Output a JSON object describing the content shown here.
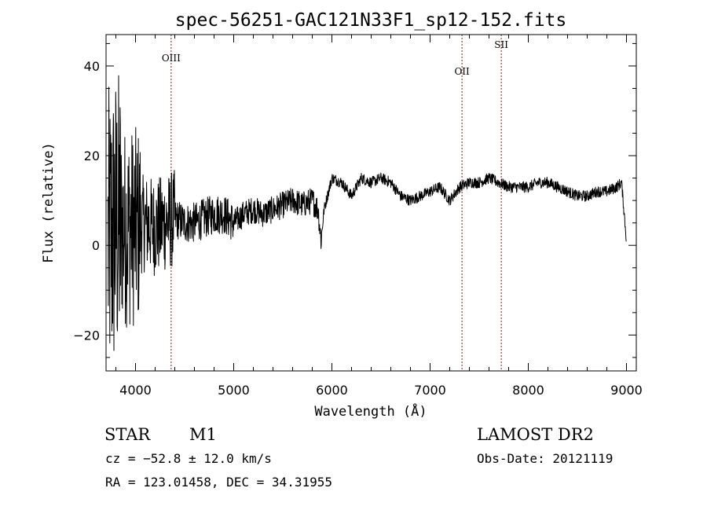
{
  "chart_data": {
    "type": "line",
    "title": "spec-56251-GAC121N33F1_sp12-152.fits",
    "xlabel": "Wavelength (Å)",
    "ylabel": "Flux (relative)",
    "xlim": [
      3700,
      9100
    ],
    "ylim": [
      -28,
      47
    ],
    "xticks": [
      4000,
      5000,
      6000,
      7000,
      8000,
      9000
    ],
    "yticks": [
      -20,
      0,
      20,
      40
    ],
    "grid": false,
    "legend": "none",
    "line_color": "#000000",
    "marker_color": "#8b1a1a",
    "series": [
      {
        "x": [
          3720,
          3800,
          3900,
          4000,
          4100,
          4200,
          4300,
          4400,
          4500,
          4600,
          4700,
          4800,
          4900,
          5000,
          5100,
          5200,
          5300,
          5400,
          5500,
          5600,
          5700,
          5800,
          5860,
          5890,
          5920,
          6000,
          6100,
          6200,
          6300,
          6400,
          6500,
          6600,
          6700,
          6800,
          6900,
          7000,
          7100,
          7200,
          7300,
          7400,
          7500,
          7600,
          7700,
          7800,
          7900,
          8000,
          8100,
          8200,
          8300,
          8400,
          8500,
          8600,
          8700,
          8800,
          8900,
          8950,
          9000
        ],
        "y": [
          0,
          5,
          4,
          4,
          5,
          4,
          5,
          6,
          5,
          5,
          6,
          7,
          7,
          5,
          7,
          8,
          7,
          8,
          9,
          10,
          9,
          10,
          8,
          1,
          8,
          15,
          14,
          11,
          15,
          14,
          15,
          14,
          11,
          10,
          11,
          12,
          13,
          10,
          13,
          14,
          14,
          15,
          14,
          13,
          13,
          13,
          14,
          14,
          13,
          12,
          11,
          11,
          12,
          12,
          13,
          14,
          1
        ]
      }
    ],
    "lines": [
      {
        "label": "OIII",
        "x": 4363
      },
      {
        "label": "OII",
        "x": 7325
      },
      {
        "label": "SII",
        "x": 7725
      }
    ]
  },
  "info": {
    "object_class": "STAR",
    "subclass": "M1",
    "survey": "LAMOST DR2",
    "cz": "cz = −52.8 ± 12.0 km/s",
    "obs_date": "Obs-Date: 20121119",
    "coords": "RA = 123.01458, DEC =  34.31955"
  }
}
